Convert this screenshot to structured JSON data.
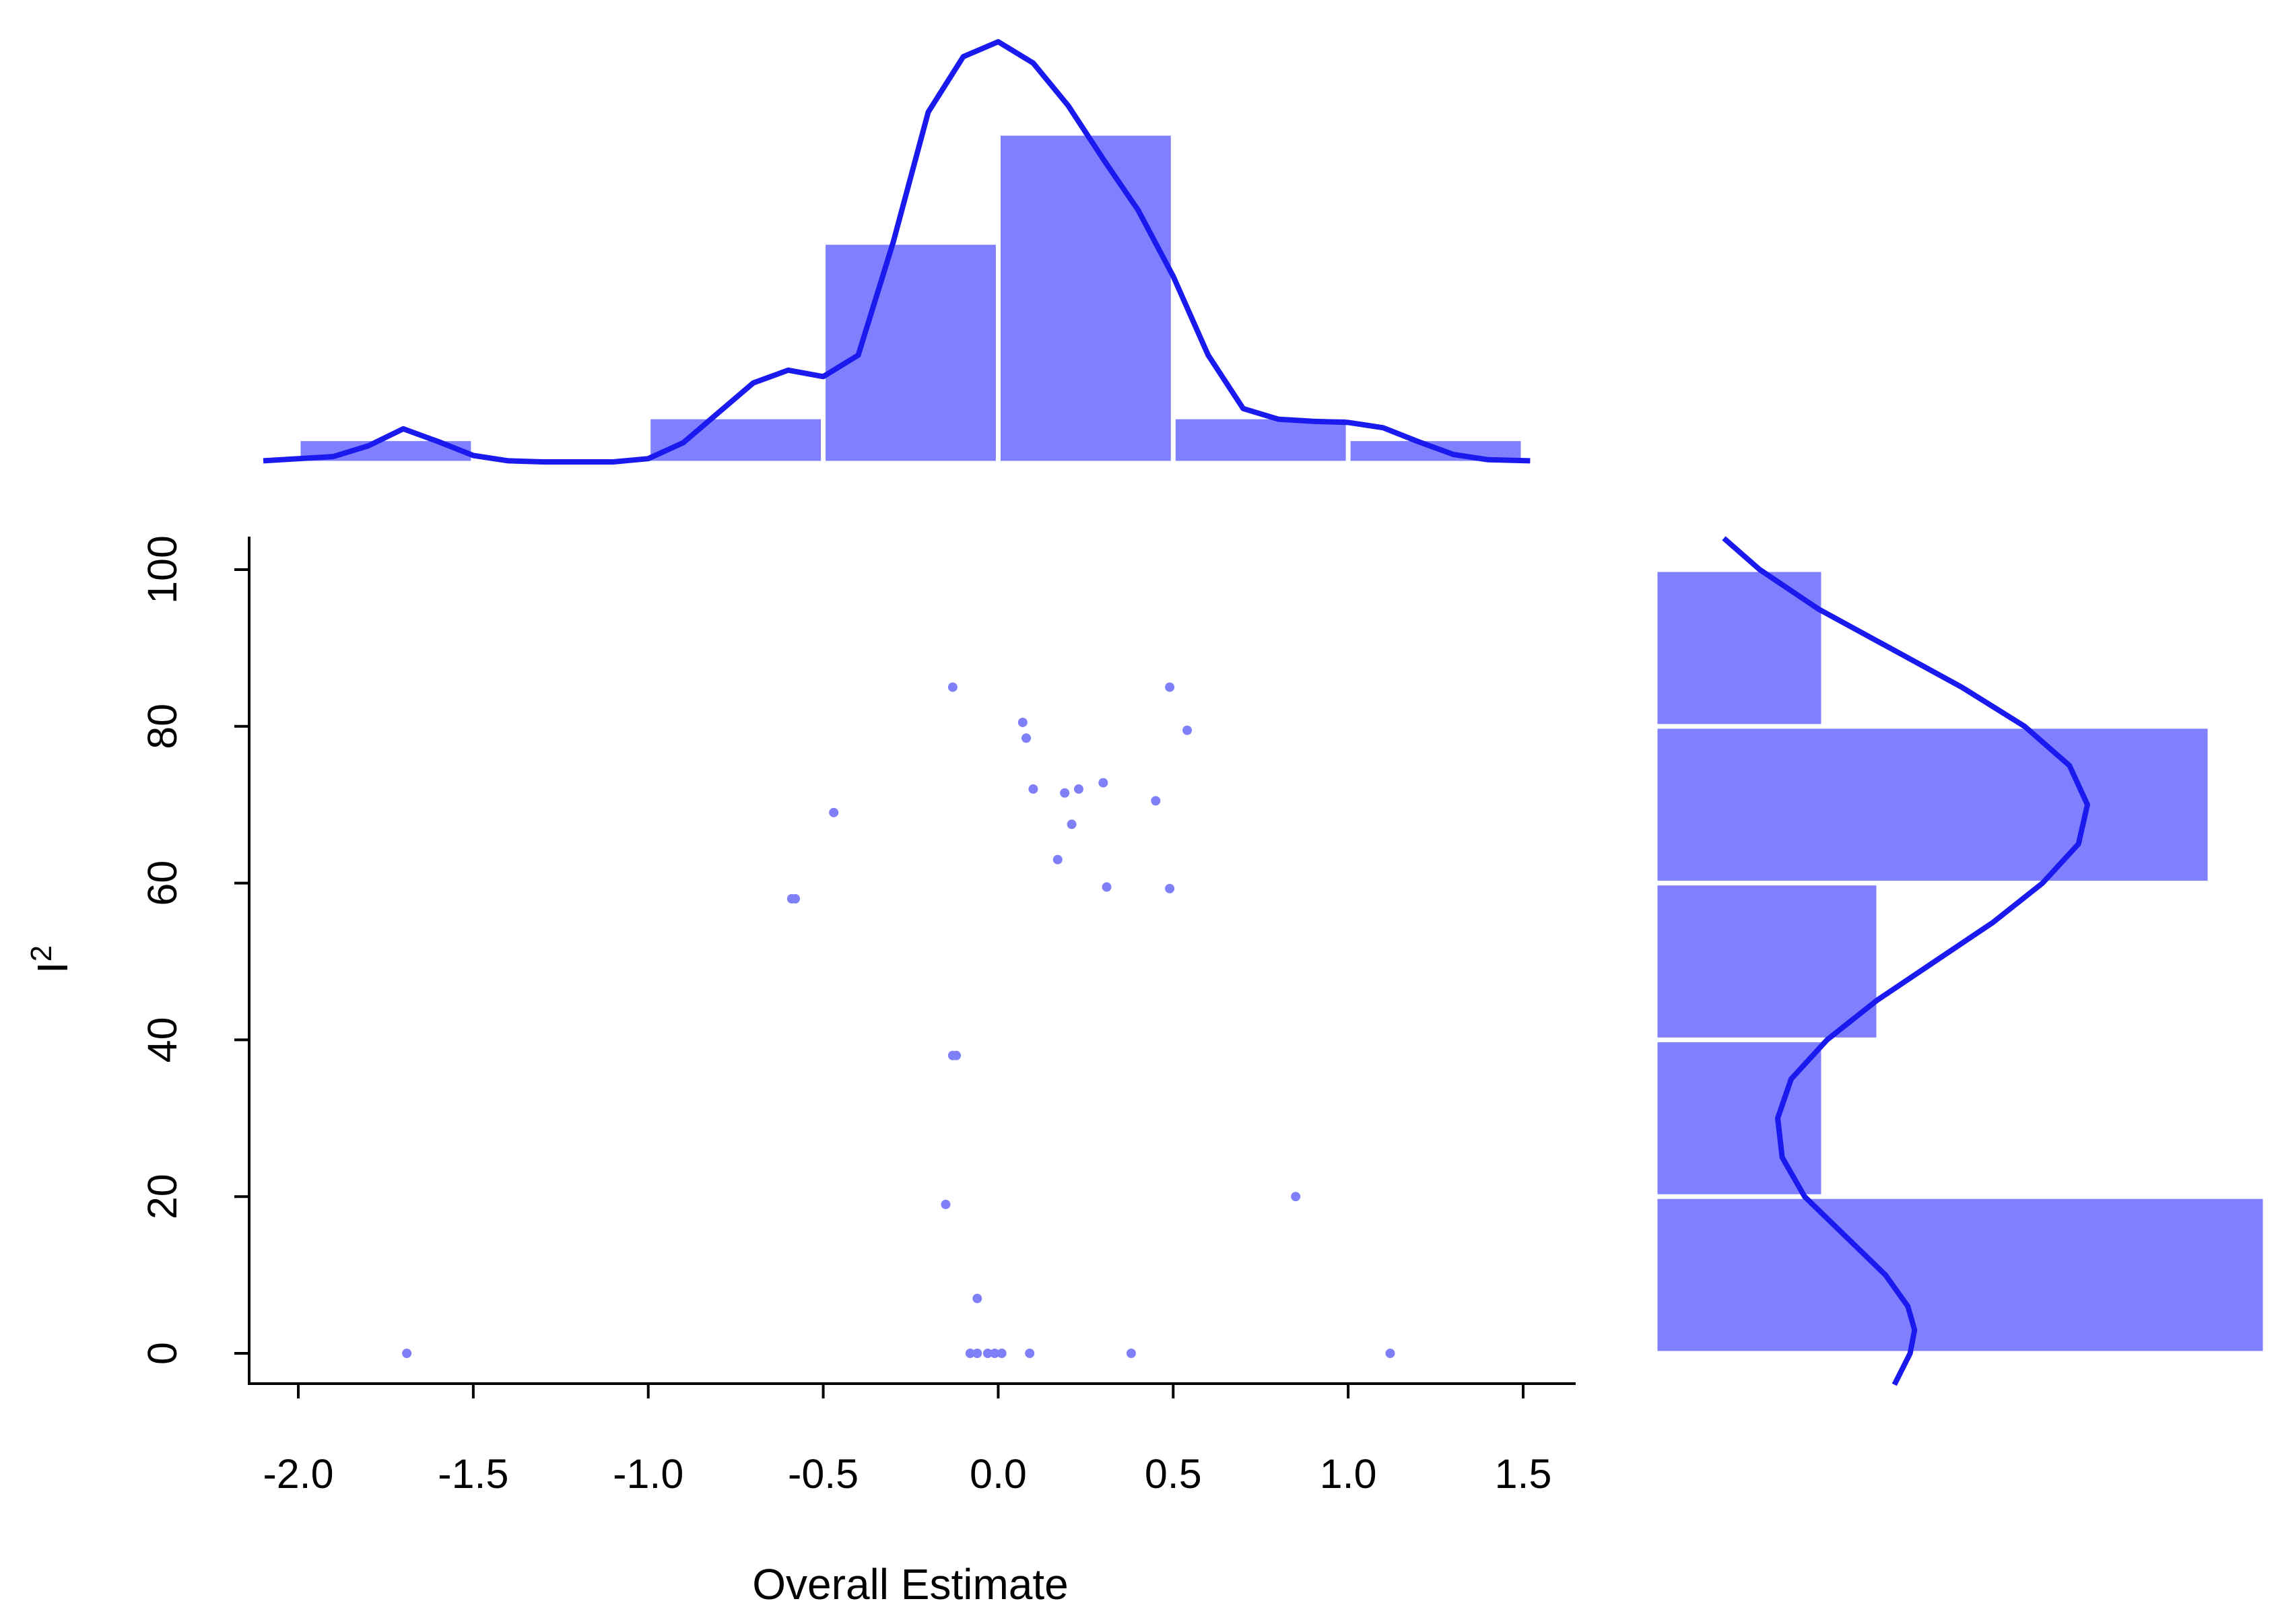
{
  "colors": {
    "fill": "#8080ff",
    "point": "#7f7ff7",
    "density": "#1a1aee",
    "axis": "#000000",
    "bar_edge": "#ffffff"
  },
  "chart_data": {
    "type": "scatter",
    "xlabel": "Overall Estimate",
    "ylabel": "I",
    "ylabel_superscript": "2",
    "xlim": [
      -2.0,
      1.5
    ],
    "ylim": [
      0,
      100
    ],
    "x_ticks": [
      "-2.0",
      "-1.5",
      "-1.0",
      "-0.5",
      "0.0",
      "0.5",
      "1.0",
      "1.5"
    ],
    "y_ticks": [
      "0",
      "20",
      "40",
      "60",
      "80",
      "100"
    ],
    "points": [
      {
        "x": -1.69,
        "y": 0
      },
      {
        "x": -0.08,
        "y": 0
      },
      {
        "x": -0.06,
        "y": 0
      },
      {
        "x": -0.03,
        "y": 0
      },
      {
        "x": -0.01,
        "y": 0
      },
      {
        "x": 0.01,
        "y": 0
      },
      {
        "x": 0.09,
        "y": 0
      },
      {
        "x": 0.38,
        "y": 0
      },
      {
        "x": 1.12,
        "y": 0
      },
      {
        "x": -0.06,
        "y": 7
      },
      {
        "x": -0.15,
        "y": 19
      },
      {
        "x": 0.85,
        "y": 20
      },
      {
        "x": -0.12,
        "y": 38
      },
      {
        "x": -0.13,
        "y": 38
      },
      {
        "x": -0.59,
        "y": 58
      },
      {
        "x": -0.58,
        "y": 58
      },
      {
        "x": 0.31,
        "y": 59.5
      },
      {
        "x": 0.49,
        "y": 59.3
      },
      {
        "x": 0.17,
        "y": 63
      },
      {
        "x": 0.21,
        "y": 67.5
      },
      {
        "x": -0.47,
        "y": 69
      },
      {
        "x": 0.45,
        "y": 70.5
      },
      {
        "x": 0.19,
        "y": 71.5
      },
      {
        "x": 0.23,
        "y": 72
      },
      {
        "x": 0.1,
        "y": 72
      },
      {
        "x": 0.3,
        "y": 72.8
      },
      {
        "x": 0.08,
        "y": 78.5
      },
      {
        "x": 0.07,
        "y": 80.5
      },
      {
        "x": 0.54,
        "y": 79.5
      },
      {
        "x": -0.13,
        "y": 85
      },
      {
        "x": 0.49,
        "y": 85
      }
    ],
    "x_histogram": {
      "bins": [
        [
          -2.0,
          -1.5
        ],
        [
          -1.5,
          -1.0
        ],
        [
          -1.0,
          -0.5
        ],
        [
          -0.5,
          0.0
        ],
        [
          0.0,
          0.5
        ],
        [
          0.5,
          1.0
        ],
        [
          1.0,
          1.5
        ]
      ],
      "counts": [
        1,
        0,
        2,
        10,
        15,
        2,
        1
      ]
    },
    "x_density": {
      "x": [
        -2.1,
        -1.9,
        -1.8,
        -1.7,
        -1.6,
        -1.5,
        -1.4,
        -1.3,
        -1.2,
        -1.1,
        -1.0,
        -0.9,
        -0.8,
        -0.7,
        -0.6,
        -0.5,
        -0.4,
        -0.3,
        -0.2,
        -0.1,
        0.0,
        0.1,
        0.2,
        0.3,
        0.4,
        0.5,
        0.6,
        0.7,
        0.8,
        0.9,
        1.0,
        1.1,
        1.2,
        1.3,
        1.4,
        1.52
      ],
      "y": [
        0.05,
        0.25,
        0.75,
        1.55,
        0.95,
        0.3,
        0.05,
        0.0,
        0.0,
        0.0,
        0.15,
        0.9,
        2.3,
        3.7,
        4.3,
        4.0,
        5.0,
        10.3,
        16.4,
        19.0,
        19.7,
        18.7,
        16.7,
        14.2,
        11.8,
        8.7,
        5.0,
        2.5,
        2.0,
        1.9,
        1.85,
        1.6,
        0.95,
        0.35,
        0.1,
        0.05
      ]
    },
    "y_histogram": {
      "bins": [
        [
          0,
          20
        ],
        [
          20,
          40
        ],
        [
          40,
          60
        ],
        [
          60,
          80
        ],
        [
          80,
          100
        ]
      ],
      "counts": [
        11,
        3,
        4,
        10,
        3
      ]
    },
    "y_density": {
      "y": [
        -4,
        0,
        3,
        6,
        10,
        15,
        20,
        25,
        30,
        35,
        40,
        45,
        50,
        55,
        60,
        65,
        70,
        75,
        80,
        85,
        90,
        95,
        100,
        104
      ],
      "x": [
        5.3,
        5.65,
        5.75,
        5.6,
        5.1,
        4.2,
        3.3,
        2.8,
        2.7,
        3.0,
        3.8,
        4.9,
        6.2,
        7.5,
        8.6,
        9.4,
        9.6,
        9.2,
        8.2,
        6.8,
        5.2,
        3.6,
        2.3,
        1.5
      ]
    }
  }
}
